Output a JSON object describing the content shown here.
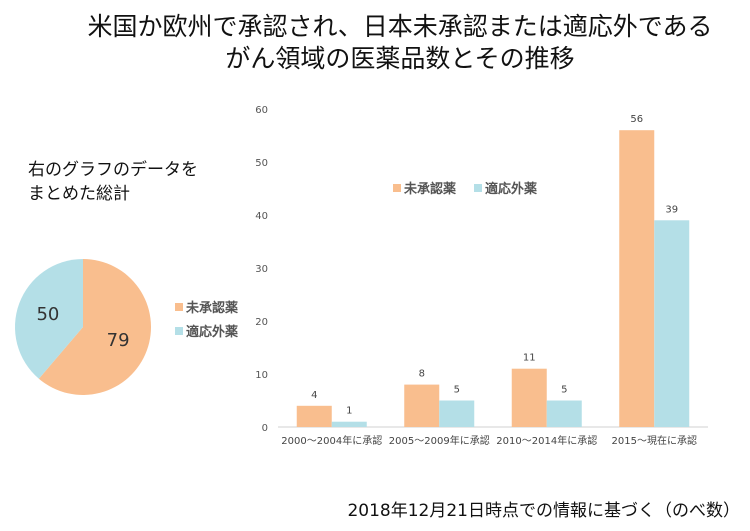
{
  "title_line1": "米国か欧州で承認され、日本未承認または適応外である",
  "title_line2": "がん領域の医薬品数とその推移",
  "summary_line1": "右のグラフのデータを",
  "summary_line2": "まとめた総計",
  "footnote": "2018年12月21日時点での情報に基づく（のべ数）",
  "colors": {
    "unapproved": "#f9be8e",
    "offlabel": "#b4dfe7"
  },
  "chart_data": [
    {
      "type": "pie",
      "labels": [
        "未承認薬",
        "適応外薬"
      ],
      "values": [
        79,
        50
      ],
      "legend_position": "right"
    },
    {
      "type": "bar",
      "categories": [
        "2000～2004年に承認",
        "2005～2009年に承認",
        "2010～2014年に承認",
        "2015～現在に承認"
      ],
      "series": [
        {
          "name": "未承認薬",
          "values": [
            4,
            8,
            11,
            56
          ]
        },
        {
          "name": "適応外薬",
          "values": [
            1,
            5,
            5,
            39
          ]
        }
      ],
      "ylim": [
        0,
        60
      ],
      "yticks": [
        0,
        10,
        20,
        30,
        40,
        50,
        60
      ],
      "grid": false,
      "legend_position": "upper-left"
    }
  ]
}
